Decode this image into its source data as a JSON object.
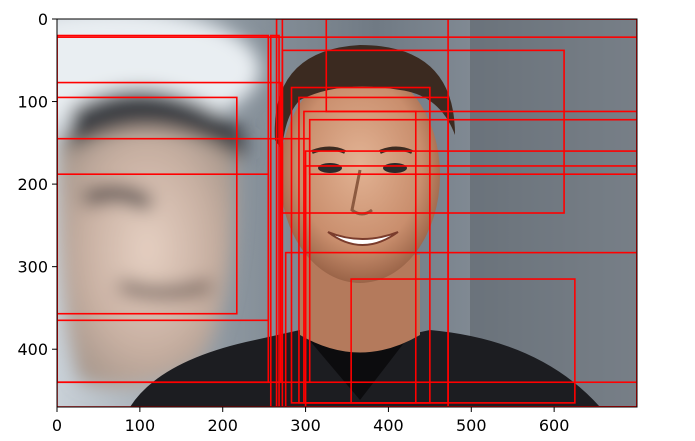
{
  "chart_data": {
    "type": "image-with-bounding-boxes",
    "x_ticks": [
      0,
      100,
      200,
      300,
      400,
      500,
      600
    ],
    "y_ticks": [
      0,
      100,
      200,
      300,
      400
    ],
    "xlim": [
      0,
      700
    ],
    "ylim": [
      470,
      0
    ],
    "image": {
      "description_tag": "photo-portrait-man-suit-blurred-background",
      "width": 700,
      "height": 470
    },
    "box_color": "#ff0000",
    "boxes": [
      {
        "x1": 0,
        "y1": 20,
        "x2": 255,
        "y2": 365
      },
      {
        "x1": 0,
        "y1": 95,
        "x2": 217,
        "y2": 357
      },
      {
        "x1": 0,
        "y1": 77,
        "x2": 270,
        "y2": 440
      },
      {
        "x1": 0,
        "y1": 145,
        "x2": 305,
        "y2": 440
      },
      {
        "x1": 0,
        "y1": 188,
        "x2": 255,
        "y2": 440
      },
      {
        "x1": 265,
        "y1": 0,
        "x2": 700,
        "y2": 470
      },
      {
        "x1": 0,
        "y1": 22,
        "x2": 700,
        "y2": 470
      },
      {
        "x1": 325,
        "y1": 0,
        "x2": 700,
        "y2": 112
      },
      {
        "x1": 272,
        "y1": 0,
        "x2": 472,
        "y2": 470
      },
      {
        "x1": 272,
        "y1": 38,
        "x2": 612,
        "y2": 235
      },
      {
        "x1": 258,
        "y1": 20,
        "x2": 268,
        "y2": 470
      },
      {
        "x1": 283,
        "y1": 83,
        "x2": 450,
        "y2": 465
      },
      {
        "x1": 292,
        "y1": 95,
        "x2": 472,
        "y2": 465
      },
      {
        "x1": 298,
        "y1": 112,
        "x2": 433,
        "y2": 465
      },
      {
        "x1": 300,
        "y1": 160,
        "x2": 700,
        "y2": 440
      },
      {
        "x1": 276,
        "y1": 283,
        "x2": 700,
        "y2": 470
      },
      {
        "x1": 355,
        "y1": 315,
        "x2": 625,
        "y2": 465
      },
      {
        "x1": 300,
        "y1": 178,
        "x2": 700,
        "y2": 470
      },
      {
        "x1": 305,
        "y1": 122,
        "x2": 700,
        "y2": 188
      }
    ]
  }
}
